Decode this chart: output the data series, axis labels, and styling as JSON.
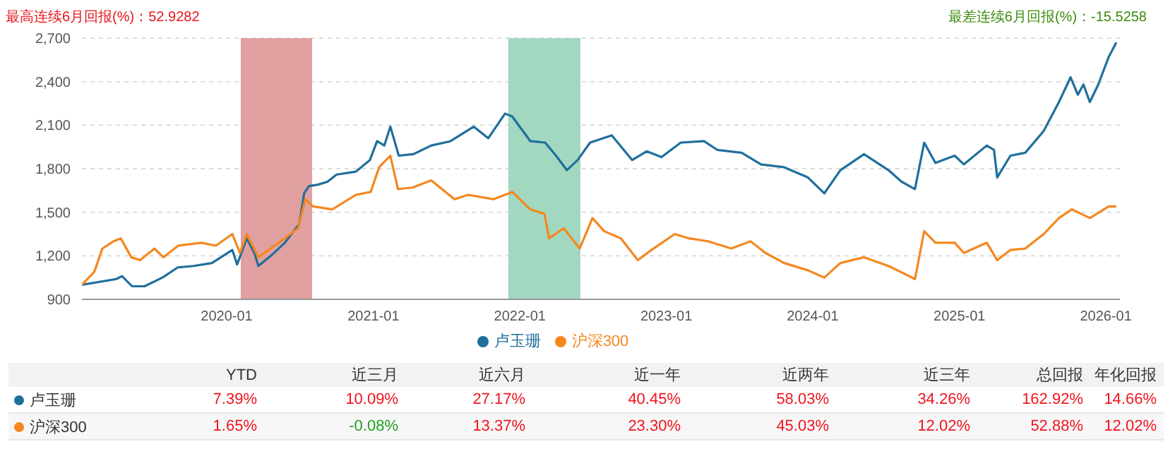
{
  "chart_data": {
    "type": "line",
    "xlim": [
      "2019-01-05",
      "2026-02-05"
    ],
    "ylim": [
      900,
      2700
    ],
    "xticks": [
      "2020-01",
      "2021-01",
      "2022-01",
      "2023-01",
      "2024-01",
      "2025-01",
      "2026-01"
    ],
    "yticks": [
      {
        "value": 900,
        "label": "900"
      },
      {
        "value": 1200,
        "label": "1,200"
      },
      {
        "value": 1500,
        "label": "1,500"
      },
      {
        "value": 1800,
        "label": "1,800"
      },
      {
        "value": 2100,
        "label": "2,100"
      },
      {
        "value": 2400,
        "label": "2,400"
      },
      {
        "value": 2700,
        "label": "2,700"
      }
    ],
    "grid": "y",
    "legend": "bottom",
    "marker": "none",
    "line_style": "solid",
    "bands": [
      {
        "axis": "x",
        "from": "2020-02-05",
        "to": "2020-08-01",
        "color": "#e1a0a0"
      },
      {
        "axis": "x",
        "from": "2021-12-03",
        "to": "2022-06-01",
        "color": "#a2d8bf"
      }
    ],
    "series": [
      {
        "name": "卢玉珊",
        "color": "#1f6f9c",
        "x": [
          "2019-01-05",
          "2019-04-01",
          "2019-04-15",
          "2019-05-10",
          "2019-06-10",
          "2019-07-25",
          "2019-09-01",
          "2019-10-10",
          "2019-11-25",
          "2020-01-15",
          "2020-01-27",
          "2020-02-20",
          "2020-03-10",
          "2020-03-20",
          "2020-04-20",
          "2020-05-25",
          "2020-06-30",
          "2020-07-12",
          "2020-07-24",
          "2020-08-15",
          "2020-09-08",
          "2020-10-01",
          "2020-11-18",
          "2020-12-23",
          "2021-01-10",
          "2021-01-28",
          "2021-02-12",
          "2021-03-05",
          "2021-04-10",
          "2021-05-25",
          "2021-07-12",
          "2021-09-08",
          "2021-10-14",
          "2021-11-25",
          "2021-12-13",
          "2022-01-27",
          "2022-03-05",
          "2022-04-01",
          "2022-04-28",
          "2022-05-25",
          "2022-06-25",
          "2022-08-18",
          "2022-10-08",
          "2022-11-13",
          "2022-12-20",
          "2023-02-06",
          "2023-04-05",
          "2023-05-08",
          "2023-07-08",
          "2023-08-25",
          "2023-10-22",
          "2023-12-20",
          "2024-01-30",
          "2024-03-10",
          "2024-05-08",
          "2024-07-08",
          "2024-08-10",
          "2024-09-12",
          "2024-10-05",
          "2024-11-02",
          "2024-12-20",
          "2025-01-12",
          "2025-03-10",
          "2025-03-28",
          "2025-04-05",
          "2025-05-08",
          "2025-06-14",
          "2025-07-30",
          "2025-09-06",
          "2025-10-05",
          "2025-10-23",
          "2025-11-06",
          "2025-11-22",
          "2025-12-13",
          "2026-01-08",
          "2026-01-27"
        ],
        "values": [
          1000,
          1040,
          1060,
          990,
          990,
          1050,
          1120,
          1130,
          1150,
          1240,
          1140,
          1320,
          1220,
          1130,
          1200,
          1290,
          1420,
          1630,
          1680,
          1690,
          1710,
          1760,
          1780,
          1860,
          1990,
          1960,
          2090,
          1890,
          1900,
          1960,
          1990,
          2090,
          2010,
          2180,
          2160,
          1990,
          1980,
          1890,
          1790,
          1860,
          1980,
          2030,
          1860,
          1920,
          1880,
          1980,
          1990,
          1930,
          1910,
          1830,
          1810,
          1740,
          1630,
          1790,
          1900,
          1790,
          1710,
          1660,
          1980,
          1840,
          1890,
          1830,
          1960,
          1930,
          1740,
          1890,
          1910,
          2060,
          2260,
          2430,
          2310,
          2380,
          2260,
          2380,
          2570,
          2670
        ]
      },
      {
        "name": "沪深300",
        "color": "#f5871f",
        "x": [
          "2019-01-05",
          "2019-02-05",
          "2019-02-25",
          "2019-03-25",
          "2019-04-12",
          "2019-05-08",
          "2019-05-30",
          "2019-07-05",
          "2019-07-27",
          "2019-09-02",
          "2019-10-30",
          "2019-12-05",
          "2020-01-15",
          "2020-02-03",
          "2020-02-20",
          "2020-03-20",
          "2020-05-10",
          "2020-06-27",
          "2020-07-15",
          "2020-08-03",
          "2020-09-20",
          "2020-11-18",
          "2020-12-25",
          "2021-01-15",
          "2021-02-12",
          "2021-03-03",
          "2021-04-08",
          "2021-05-25",
          "2021-07-22",
          "2021-08-25",
          "2021-10-27",
          "2021-12-13",
          "2022-01-27",
          "2022-03-03",
          "2022-03-15",
          "2022-04-20",
          "2022-05-30",
          "2022-07-01",
          "2022-07-30",
          "2022-09-10",
          "2022-10-22",
          "2022-11-25",
          "2023-01-22",
          "2023-02-27",
          "2023-04-15",
          "2023-06-12",
          "2023-07-30",
          "2023-09-05",
          "2023-10-22",
          "2023-12-20",
          "2024-01-30",
          "2024-03-10",
          "2024-05-08",
          "2024-07-08",
          "2024-09-12",
          "2024-10-05",
          "2024-11-02",
          "2024-12-20",
          "2025-01-12",
          "2025-03-10",
          "2025-04-05",
          "2025-05-08",
          "2025-06-14",
          "2025-07-30",
          "2025-09-06",
          "2025-10-08",
          "2025-11-22",
          "2026-01-08",
          "2026-01-27"
        ],
        "values": [
          1000,
          1090,
          1250,
          1300,
          1320,
          1190,
          1170,
          1250,
          1190,
          1270,
          1290,
          1270,
          1350,
          1220,
          1350,
          1190,
          1290,
          1390,
          1590,
          1540,
          1520,
          1620,
          1640,
          1810,
          1890,
          1660,
          1670,
          1720,
          1590,
          1620,
          1590,
          1640,
          1520,
          1490,
          1320,
          1390,
          1250,
          1460,
          1370,
          1320,
          1170,
          1240,
          1350,
          1320,
          1300,
          1250,
          1300,
          1220,
          1150,
          1100,
          1050,
          1150,
          1190,
          1130,
          1040,
          1370,
          1290,
          1290,
          1220,
          1290,
          1170,
          1240,
          1250,
          1350,
          1460,
          1520,
          1460,
          1540,
          1540
        ]
      }
    ],
    "annotations": [
      "最高连续6月回报(%)：52.9282",
      "最差连续6月回报(%)：-15.5258",
      "YTD",
      "近三月",
      "近六月",
      "近一年",
      "近两年",
      "近三年",
      "总回报",
      "年化回报",
      "7.39%",
      "10.09%",
      "27.17%",
      "40.45%",
      "58.03%",
      "34.26%",
      "162.92%",
      "14.66%",
      "1.65%",
      "-0.08%",
      "13.37%",
      "23.30%",
      "45.03%",
      "12.02%",
      "52.88%",
      "12.02%"
    ]
  }
}
